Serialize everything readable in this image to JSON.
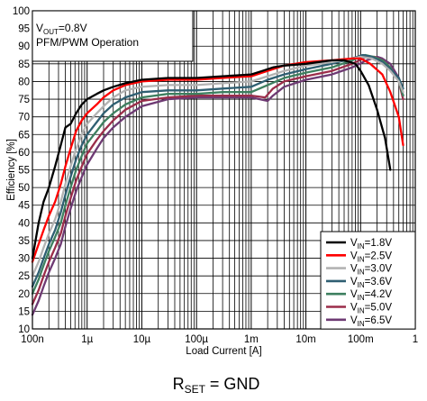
{
  "chart_data": {
    "type": "line",
    "xscale": "log",
    "xlim": [
      1e-07,
      1
    ],
    "ylim": [
      10,
      100
    ],
    "xlabel": "Load Current [A]",
    "ylabel": "Efficiency [%]",
    "x_ticks": [
      {
        "value": 1e-07,
        "label": "100n"
      },
      {
        "value": 1e-06,
        "label": "1µ"
      },
      {
        "value": 1e-05,
        "label": "10µ"
      },
      {
        "value": 0.0001,
        "label": "100µ"
      },
      {
        "value": 0.001,
        "label": "1m"
      },
      {
        "value": 0.01,
        "label": "10m"
      },
      {
        "value": 0.1,
        "label": "100m"
      },
      {
        "value": 1,
        "label": "1"
      }
    ],
    "y_ticks": [
      10,
      15,
      20,
      25,
      30,
      35,
      40,
      45,
      50,
      55,
      60,
      65,
      70,
      75,
      80,
      85,
      90,
      95,
      100
    ],
    "grid": true,
    "annotation": {
      "line1_main": "V",
      "line1_sub": "OUT",
      "line1_rest": "=0.8V",
      "line2": "PFM/PWM Operation"
    },
    "caption": {
      "main": "R",
      "sub": "SET",
      "rest": " = GND"
    },
    "legend_position": "bottom-right",
    "series": [
      {
        "name": "VIN=1.8V",
        "name_main": "V",
        "name_sub": "IN",
        "name_rest": "=1.8V",
        "color": "#000000",
        "points": [
          [
            1e-07,
            30
          ],
          [
            1.3e-07,
            40
          ],
          [
            1.6e-07,
            46
          ],
          [
            2e-07,
            50
          ],
          [
            2.6e-07,
            56
          ],
          [
            3.3e-07,
            62
          ],
          [
            4e-07,
            67
          ],
          [
            5e-07,
            68
          ],
          [
            6.3e-07,
            71
          ],
          [
            8e-07,
            73.5
          ],
          [
            1e-06,
            75
          ],
          [
            1.5e-06,
            76.5
          ],
          [
            2e-06,
            77.5
          ],
          [
            3e-06,
            78.5
          ],
          [
            5e-06,
            79.5
          ],
          [
            1e-05,
            80.5
          ],
          [
            3e-05,
            81
          ],
          [
            0.0001,
            81
          ],
          [
            0.0003,
            81.5
          ],
          [
            0.001,
            82
          ],
          [
            0.0016,
            83
          ],
          [
            0.0025,
            84
          ],
          [
            0.004,
            84.5
          ],
          [
            0.01,
            85
          ],
          [
            0.03,
            86
          ],
          [
            0.05,
            86
          ],
          [
            0.08,
            85
          ],
          [
            0.1,
            83
          ],
          [
            0.14,
            79
          ],
          [
            0.2,
            72
          ],
          [
            0.28,
            64
          ],
          [
            0.35,
            55
          ]
        ]
      },
      {
        "name": "VIN=2.5V",
        "name_main": "V",
        "name_sub": "IN",
        "name_rest": "=2.5V",
        "color": "#ff0000",
        "points": [
          [
            1e-07,
            29
          ],
          [
            1.3e-07,
            34
          ],
          [
            1.6e-07,
            38
          ],
          [
            2e-07,
            42
          ],
          [
            2.6e-07,
            46
          ],
          [
            3.3e-07,
            51
          ],
          [
            4e-07,
            56
          ],
          [
            5e-07,
            61
          ],
          [
            6.3e-07,
            66
          ],
          [
            8e-07,
            69
          ],
          [
            1e-06,
            71
          ],
          [
            1.5e-06,
            73.5
          ],
          [
            2e-06,
            75.5
          ],
          [
            3e-06,
            77.5
          ],
          [
            5e-06,
            79
          ],
          [
            1e-05,
            80
          ],
          [
            3e-05,
            80.5
          ],
          [
            0.0001,
            80.5
          ],
          [
            0.0003,
            81
          ],
          [
            0.001,
            81.5
          ],
          [
            0.002,
            83
          ],
          [
            0.004,
            84.5
          ],
          [
            0.01,
            85.5
          ],
          [
            0.03,
            86
          ],
          [
            0.07,
            86.5
          ],
          [
            0.1,
            86.5
          ],
          [
            0.15,
            85
          ],
          [
            0.25,
            82
          ],
          [
            0.35,
            77
          ],
          [
            0.5,
            70
          ],
          [
            0.6,
            62
          ]
        ]
      },
      {
        "name": "VIN=3.0V",
        "name_main": "V",
        "name_sub": "IN",
        "name_rest": "=3.0V",
        "color": "#b3b3b3",
        "points": [
          [
            1e-07,
            25
          ],
          [
            1.3e-07,
            29
          ],
          [
            1.6e-07,
            33
          ],
          [
            2e-07,
            37
          ],
          [
            2.6e-07,
            41
          ],
          [
            3.3e-07,
            46
          ],
          [
            4e-07,
            51
          ],
          [
            5e-07,
            56
          ],
          [
            6.3e-07,
            61
          ],
          [
            8e-07,
            65
          ],
          [
            1e-06,
            68
          ],
          [
            1.5e-06,
            71
          ],
          [
            2e-06,
            73
          ],
          [
            3e-06,
            75.5
          ],
          [
            5e-06,
            77.5
          ],
          [
            1e-05,
            78.5
          ],
          [
            3e-05,
            79
          ],
          [
            0.0001,
            79
          ],
          [
            0.0003,
            79.5
          ],
          [
            0.001,
            80
          ],
          [
            0.002,
            81.5
          ],
          [
            0.004,
            83
          ],
          [
            0.01,
            84.5
          ],
          [
            0.03,
            85.5
          ],
          [
            0.07,
            86.5
          ],
          [
            0.1,
            87
          ],
          [
            0.16,
            86.5
          ],
          [
            0.25,
            85
          ],
          [
            0.35,
            83
          ],
          [
            0.5,
            80
          ],
          [
            0.6,
            77
          ]
        ]
      },
      {
        "name": "VIN=3.6V",
        "name_main": "V",
        "name_sub": "IN",
        "name_rest": "=3.6V",
        "color": "#2f5f72",
        "points": [
          [
            1e-07,
            22
          ],
          [
            1.3e-07,
            26
          ],
          [
            1.6e-07,
            30
          ],
          [
            2e-07,
            34
          ],
          [
            2.6e-07,
            38
          ],
          [
            3.3e-07,
            43
          ],
          [
            4e-07,
            48
          ],
          [
            5e-07,
            53
          ],
          [
            6.3e-07,
            58
          ],
          [
            8e-07,
            62
          ],
          [
            1e-06,
            65
          ],
          [
            1.5e-06,
            68.5
          ],
          [
            2e-06,
            71
          ],
          [
            3e-06,
            73.5
          ],
          [
            5e-06,
            75.5
          ],
          [
            1e-05,
            77
          ],
          [
            3e-05,
            77.5
          ],
          [
            0.0001,
            77.5
          ],
          [
            0.0003,
            78
          ],
          [
            0.001,
            78.5
          ],
          [
            0.002,
            80.5
          ],
          [
            0.004,
            82
          ],
          [
            0.01,
            83.5
          ],
          [
            0.03,
            85
          ],
          [
            0.07,
            86.5
          ],
          [
            0.11,
            87.5
          ],
          [
            0.16,
            87
          ],
          [
            0.25,
            85.5
          ],
          [
            0.35,
            83.5
          ],
          [
            0.5,
            81
          ],
          [
            0.6,
            78
          ]
        ]
      },
      {
        "name": "VIN=4.2V",
        "name_main": "V",
        "name_sub": "IN",
        "name_rest": "=4.2V",
        "color": "#3d7f5f",
        "points": [
          [
            1e-07,
            20
          ],
          [
            1.3e-07,
            24
          ],
          [
            1.6e-07,
            28
          ],
          [
            2e-07,
            32
          ],
          [
            2.6e-07,
            36
          ],
          [
            3.3e-07,
            40
          ],
          [
            4e-07,
            45
          ],
          [
            5e-07,
            50
          ],
          [
            6.3e-07,
            55
          ],
          [
            8e-07,
            59
          ],
          [
            1e-06,
            62.5
          ],
          [
            1.5e-06,
            66
          ],
          [
            2e-06,
            68.5
          ],
          [
            3e-06,
            71
          ],
          [
            5e-06,
            73.5
          ],
          [
            1e-05,
            75.5
          ],
          [
            3e-05,
            76.5
          ],
          [
            0.0001,
            76.5
          ],
          [
            0.0003,
            77
          ],
          [
            0.001,
            77
          ],
          [
            0.002,
            79
          ],
          [
            0.004,
            81
          ],
          [
            0.01,
            82.5
          ],
          [
            0.03,
            84
          ],
          [
            0.07,
            86
          ],
          [
            0.12,
            87.5
          ],
          [
            0.17,
            87
          ],
          [
            0.25,
            86
          ],
          [
            0.35,
            84
          ],
          [
            0.5,
            80
          ],
          [
            0.6,
            76
          ]
        ]
      },
      {
        "name": "VIN=5.0V",
        "name_main": "V",
        "name_sub": "IN",
        "name_rest": "=5.0V",
        "color": "#9b2d4a",
        "points": [
          [
            1e-07,
            17
          ],
          [
            1.3e-07,
            21
          ],
          [
            1.6e-07,
            25
          ],
          [
            2e-07,
            29
          ],
          [
            2.6e-07,
            33
          ],
          [
            3.3e-07,
            37
          ],
          [
            4e-07,
            42
          ],
          [
            5e-07,
            47
          ],
          [
            6.3e-07,
            52
          ],
          [
            8e-07,
            56
          ],
          [
            1e-06,
            59.5
          ],
          [
            1.5e-06,
            63.5
          ],
          [
            2e-06,
            66
          ],
          [
            3e-06,
            69
          ],
          [
            5e-06,
            72
          ],
          [
            1e-05,
            74.5
          ],
          [
            3e-05,
            75.5
          ],
          [
            0.0001,
            76
          ],
          [
            0.0003,
            76
          ],
          [
            0.001,
            76
          ],
          [
            0.0018,
            75.5
          ],
          [
            0.0025,
            78
          ],
          [
            0.004,
            80
          ],
          [
            0.01,
            81.5
          ],
          [
            0.03,
            83
          ],
          [
            0.07,
            85
          ],
          [
            0.13,
            87
          ],
          [
            0.18,
            87
          ],
          [
            0.25,
            86
          ],
          [
            0.35,
            84
          ],
          [
            0.5,
            80
          ],
          [
            0.6,
            75
          ]
        ]
      },
      {
        "name": "VIN=6.5V",
        "name_main": "V",
        "name_sub": "IN",
        "name_rest": "=6.5V",
        "color": "#6e3a73",
        "points": [
          [
            1e-07,
            14
          ],
          [
            1.3e-07,
            18
          ],
          [
            1.6e-07,
            22
          ],
          [
            2e-07,
            26
          ],
          [
            2.6e-07,
            30
          ],
          [
            3.3e-07,
            34
          ],
          [
            4e-07,
            39
          ],
          [
            5e-07,
            44
          ],
          [
            6.3e-07,
            49
          ],
          [
            8e-07,
            53
          ],
          [
            1e-06,
            56.5
          ],
          [
            1.5e-06,
            61
          ],
          [
            2e-06,
            64
          ],
          [
            3e-06,
            67
          ],
          [
            5e-06,
            70
          ],
          [
            1e-05,
            73
          ],
          [
            3e-05,
            75
          ],
          [
            0.0001,
            75.5
          ],
          [
            0.0003,
            75.5
          ],
          [
            0.001,
            75.5
          ],
          [
            0.002,
            74.5
          ],
          [
            0.0025,
            76
          ],
          [
            0.004,
            78.5
          ],
          [
            0.01,
            80.5
          ],
          [
            0.03,
            82
          ],
          [
            0.07,
            84
          ],
          [
            0.13,
            86
          ],
          [
            0.2,
            87
          ],
          [
            0.25,
            86.5
          ],
          [
            0.35,
            85
          ],
          [
            0.5,
            81
          ],
          [
            0.6,
            76
          ]
        ]
      }
    ]
  }
}
